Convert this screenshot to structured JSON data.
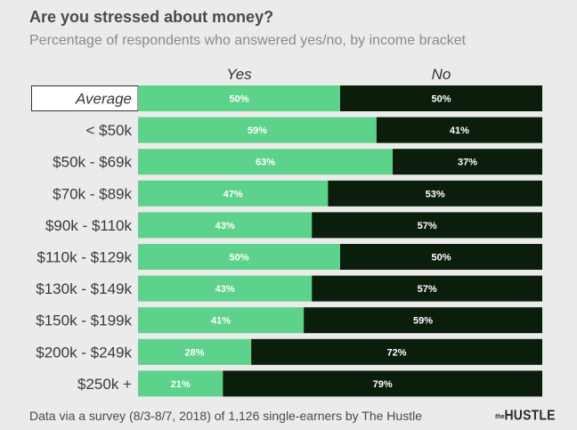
{
  "chart_data": {
    "type": "bar",
    "stacked": true,
    "orientation": "horizontal",
    "title": "Are you stressed about money?",
    "subtitle": "Percentage of respondents who answered yes/no, by income bracket",
    "categories": [
      "Average",
      "< $50k",
      "$50k - $69k",
      "$70k - $89k",
      "$90k - $110k",
      "$110k - $129k",
      "$130k - $149k",
      "$150k - $199k",
      "$200k - $249k",
      "$250k +"
    ],
    "series": [
      {
        "name": "Yes",
        "values": [
          50,
          59,
          63,
          47,
          43,
          50,
          43,
          41,
          28,
          21
        ],
        "color": "#5dd28a"
      },
      {
        "name": "No",
        "values": [
          50,
          41,
          37,
          53,
          57,
          50,
          57,
          59,
          72,
          79
        ],
        "color": "#0b1e0b"
      }
    ],
    "value_suffix": "%",
    "xlim": [
      0,
      100
    ],
    "highlighted_category": "Average",
    "legend_placement": "top"
  },
  "footer": {
    "source": "Data via a survey (8/3-8/7, 2018) of 1,126 single-earners by The Hustle",
    "logo_prefix": "the",
    "logo_word": "HUSTLE"
  },
  "colors": {
    "background": "#ebebeb",
    "yes": "#5dd28a",
    "no": "#0b1e0b",
    "label_on_yes": "#ffffff",
    "label_on_no": "#ffffff"
  }
}
